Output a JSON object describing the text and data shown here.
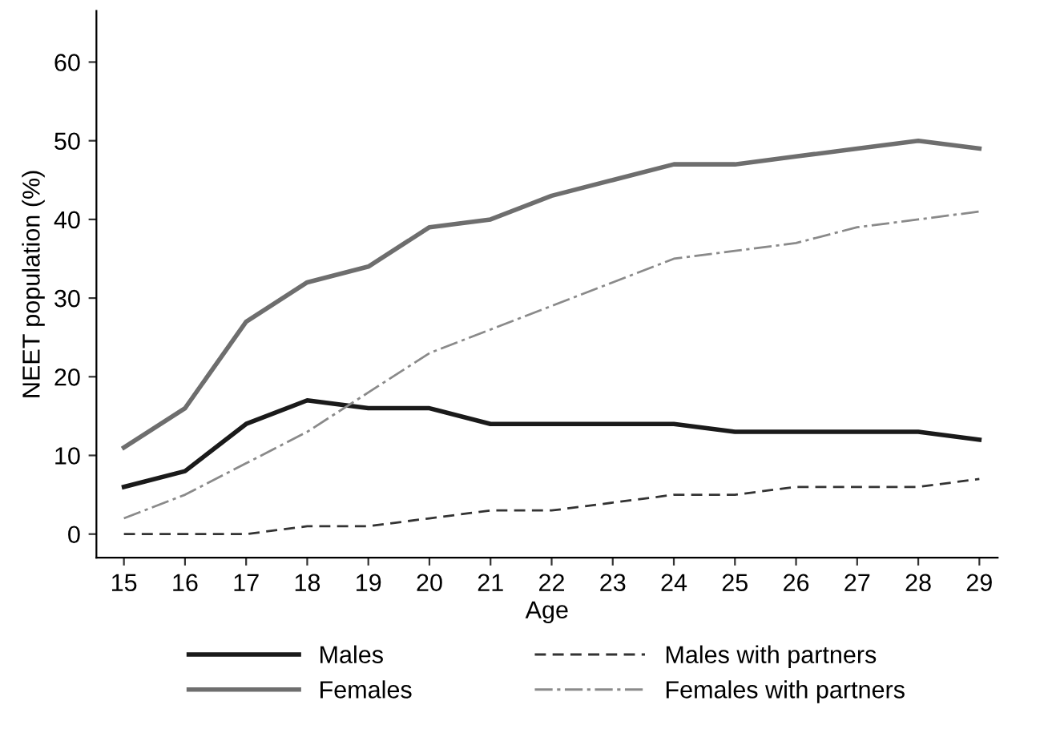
{
  "chart_data": {
    "type": "line",
    "xlabel": "Age",
    "ylabel": "NEET population (%)",
    "x": [
      15,
      16,
      17,
      18,
      19,
      20,
      21,
      22,
      23,
      24,
      25,
      26,
      27,
      28,
      29
    ],
    "series": [
      {
        "name": "Males",
        "color": "#1a1a1a",
        "line_style": "solid",
        "values": [
          6,
          8,
          14,
          17,
          16,
          16,
          14,
          14,
          14,
          14,
          13,
          13,
          13,
          13,
          12
        ]
      },
      {
        "name": "Females",
        "color": "#6e6e6e",
        "line_style": "solid",
        "values": [
          11,
          16,
          27,
          32,
          34,
          39,
          40,
          43,
          45,
          47,
          47,
          48,
          49,
          50,
          49
        ]
      },
      {
        "name": "Males with partners",
        "color": "#333333",
        "line_style": "dashed",
        "values": [
          0,
          0,
          0,
          1,
          1,
          2,
          3,
          3,
          4,
          5,
          5,
          6,
          6,
          6,
          7
        ]
      },
      {
        "name": "Females with partners",
        "color": "#8a8a8a",
        "line_style": "dashdot",
        "values": [
          2,
          5,
          9,
          13,
          18,
          23,
          26,
          29,
          32,
          35,
          36,
          37,
          39,
          40,
          41
        ]
      }
    ],
    "xlim": [
      14.55,
      29.3
    ],
    "ylim": [
      -3,
      66.5
    ],
    "xticks": [
      15,
      16,
      17,
      18,
      19,
      20,
      21,
      22,
      23,
      24,
      25,
      26,
      27,
      28,
      29
    ],
    "yticks": [
      0,
      10,
      20,
      30,
      40,
      50,
      60
    ],
    "grid": false,
    "legend": "bottom",
    "marker": "none"
  }
}
